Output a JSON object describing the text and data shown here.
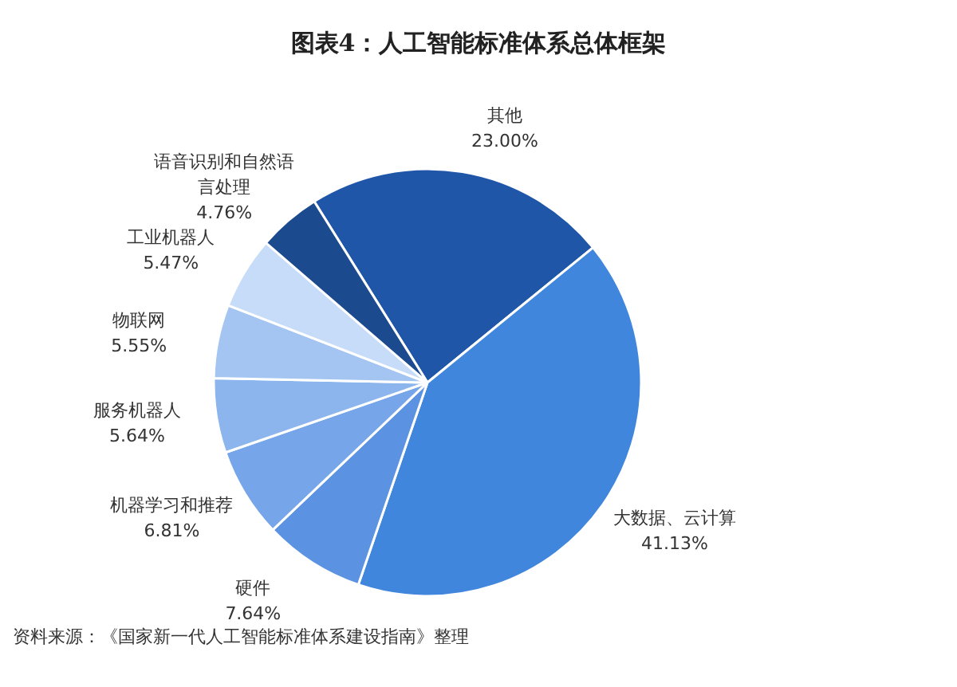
{
  "chart_data": {
    "type": "pie",
    "title": "图表4：人工智能标准体系总体框架",
    "categories": [
      "其他",
      "大数据、云计算",
      "硬件",
      "机器学习和推荐",
      "服务机器人",
      "物联网",
      "工业机器人",
      "语音识别和自然语言处理"
    ],
    "values": [
      23.0,
      41.13,
      7.64,
      6.81,
      5.64,
      5.55,
      5.47,
      4.76
    ],
    "value_labels": [
      "23.00%",
      "41.13%",
      "7.64%",
      "6.81%",
      "5.64%",
      "5.55%",
      "5.47%",
      "4.76%"
    ],
    "colors": [
      "#1f56a8",
      "#4086dc",
      "#5b93e2",
      "#76a6e9",
      "#8cb5ee",
      "#a4c5f2",
      "#c6dcf8",
      "#1b4a8e"
    ],
    "annotations": [
      "资料来源：《国家新一代人工智能标准体系建设指南》整理"
    ]
  }
}
